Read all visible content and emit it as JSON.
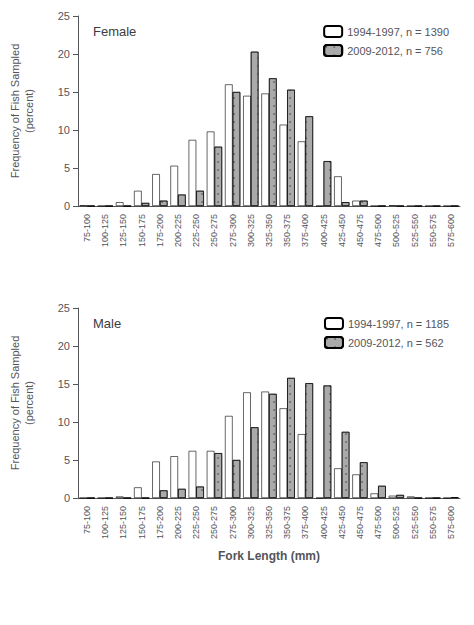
{
  "chart_data": [
    {
      "type": "bar",
      "title": "Female",
      "categories": [
        "75-100",
        "100-125",
        "125-150",
        "150-175",
        "175-200",
        "200-225",
        "225-250",
        "250-275",
        "275-300",
        "300-325",
        "325-350",
        "350-375",
        "375-400",
        "400-425",
        "425-450",
        "450-475",
        "475-500",
        "500-525",
        "525-550",
        "550-575",
        "575-600"
      ],
      "series": [
        {
          "name": "1994-1997, n = 1390",
          "color": "#ffffff",
          "values": [
            0.1,
            0.0,
            0.5,
            2.0,
            4.2,
            5.3,
            8.7,
            9.8,
            16.0,
            14.5,
            14.8,
            10.7,
            8.5,
            0.0,
            3.9,
            0.7,
            0.0,
            0.1,
            0.0,
            0.0,
            0.0
          ]
        },
        {
          "name": "2009-2012, n = 756",
          "color": "#aaaaaa",
          "values": [
            0.0,
            0.0,
            0.0,
            0.4,
            0.7,
            1.5,
            2.0,
            7.8,
            15.0,
            20.3,
            16.8,
            15.3,
            11.8,
            5.9,
            0.5,
            0.7,
            0.0,
            0.0,
            0.0,
            0.0,
            0.0
          ]
        }
      ],
      "ylabel": "Frequency of Fish Sampled\n(percent)",
      "ylim": [
        0,
        25
      ],
      "yticks": [
        0,
        5,
        10,
        15,
        20,
        25
      ],
      "legend": "upper right",
      "grid": false
    },
    {
      "type": "bar",
      "title": "Male",
      "categories": [
        "75-100",
        "100-125",
        "125-150",
        "150-175",
        "175-200",
        "200-225",
        "225-250",
        "250-275",
        "275-300",
        "300-325",
        "325-350",
        "350-375",
        "375-400",
        "400-425",
        "425-450",
        "450-475",
        "475-500",
        "500-525",
        "525-550",
        "550-575",
        "575-600"
      ],
      "series": [
        {
          "name": "1994-1997, n = 1185",
          "color": "#ffffff",
          "values": [
            0.0,
            0.0,
            0.2,
            1.4,
            4.8,
            5.5,
            6.2,
            6.2,
            10.8,
            13.9,
            14.0,
            11.8,
            8.4,
            0.0,
            3.9,
            3.1,
            0.6,
            0.3,
            0.2,
            0.0,
            0.0
          ]
        },
        {
          "name": "2009-2012, n = 562",
          "color": "#aaaaaa",
          "values": [
            0.0,
            0.0,
            0.0,
            0.0,
            1.0,
            1.2,
            1.5,
            5.9,
            5.0,
            9.3,
            13.7,
            15.8,
            15.1,
            14.8,
            8.7,
            4.7,
            1.6,
            0.4,
            0.0,
            0.0,
            0.1
          ]
        }
      ],
      "ylabel": "Frequency of Fish Sampled\n(percent)",
      "xlabel": "Fork Length (mm)",
      "ylim": [
        0,
        25
      ],
      "yticks": [
        0,
        5,
        10,
        15,
        20,
        25
      ],
      "legend": "upper right",
      "grid": false
    }
  ]
}
